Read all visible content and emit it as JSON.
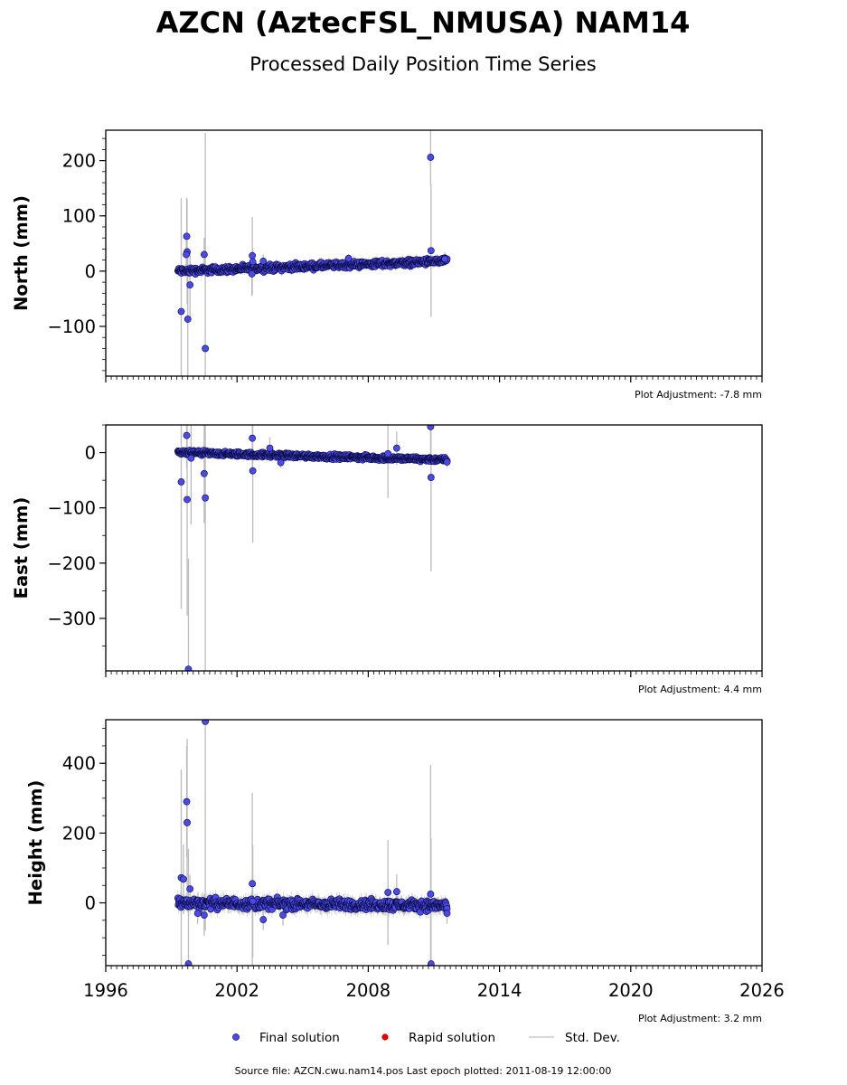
{
  "title": "AZCN (AztecFSL_NMUSA) NAM14",
  "subtitle": "Processed Daily Position Time Series",
  "source_line": "Source file: AZCN.cwu.nam14.pos  Last epoch plotted: 2011-08-19 12:00:00",
  "legend": {
    "final": "Final solution",
    "rapid": "Rapid solution",
    "std": "Std. Dev."
  },
  "colors": {
    "final": "#4a4ae6",
    "final_edge": "#0a0a40",
    "rapid": "#dd0000",
    "std": "#bbbbbb"
  },
  "chart_data": [
    {
      "type": "scatter",
      "ylabel": "North (mm)",
      "adjustment": "Plot Adjustment: -7.8 mm",
      "xlim": [
        1996,
        2026
      ],
      "ylim": [
        -190,
        255
      ],
      "yticks": [
        -100,
        0,
        100,
        200
      ],
      "ytick_labels": [
        "−100",
        "0",
        "100",
        "200"
      ],
      "minor_step": 20,
      "trend": [
        [
          1999.3,
          0
        ],
        [
          2011.6,
          18
        ]
      ],
      "noise": 4,
      "outliers": [
        [
          1999.45,
          -73,
          205
        ],
        [
          1999.7,
          63,
          70
        ],
        [
          1999.72,
          35,
          95
        ],
        [
          1999.68,
          30,
          40
        ],
        [
          1999.75,
          -87,
          130
        ],
        [
          1999.85,
          -25,
          60
        ],
        [
          2000.5,
          30,
          30
        ],
        [
          2000.55,
          -140,
          390
        ],
        [
          2002.7,
          28,
          70
        ],
        [
          2002.72,
          17,
          25
        ],
        [
          2002.68,
          -5,
          40
        ],
        [
          2003.2,
          18,
          12
        ],
        [
          2007.1,
          23,
          8
        ],
        [
          2010.85,
          206,
          50
        ],
        [
          2010.87,
          37,
          120
        ],
        [
          2011.5,
          22,
          12
        ]
      ],
      "series": [
        {
          "name": "Final solution"
        }
      ]
    },
    {
      "type": "scatter",
      "ylabel": "East (mm)",
      "adjustment": "Plot Adjustment: 4.4 mm",
      "xlim": [
        1996,
        2026
      ],
      "ylim": [
        -395,
        50
      ],
      "yticks": [
        -300,
        -200,
        -100,
        0
      ],
      "ytick_labels": [
        "−300",
        "−200",
        "−100",
        "0"
      ],
      "minor_step": 50,
      "trend": [
        [
          1999.3,
          0
        ],
        [
          2011.6,
          -13
        ]
      ],
      "noise": 3,
      "outliers": [
        [
          1999.45,
          -53,
          230
        ],
        [
          1999.7,
          31,
          60
        ],
        [
          1999.72,
          -85,
          210
        ],
        [
          1999.78,
          -392,
          200
        ],
        [
          1999.9,
          -10,
          120
        ],
        [
          2000.5,
          -38,
          90
        ],
        [
          2000.55,
          -82,
          400
        ],
        [
          2002.7,
          26,
          60
        ],
        [
          2002.72,
          -33,
          130
        ],
        [
          2003.5,
          8,
          20
        ],
        [
          2004.0,
          -18,
          10
        ],
        [
          2008.9,
          -2,
          80
        ],
        [
          2009.3,
          8,
          30
        ],
        [
          2010.85,
          47,
          60
        ],
        [
          2010.87,
          -45,
          170
        ],
        [
          2011.6,
          -17,
          10
        ]
      ],
      "series": [
        {
          "name": "Final solution"
        }
      ]
    },
    {
      "type": "scatter",
      "ylabel": "Height (mm)",
      "adjustment": "Plot Adjustment: 3.2 mm",
      "xlim": [
        1996,
        2026
      ],
      "ylim": [
        -180,
        525
      ],
      "yticks": [
        0,
        200,
        400
      ],
      "ytick_labels": [
        "0",
        "200",
        "400"
      ],
      "minor_step": 50,
      "trend": [
        [
          1999.3,
          0
        ],
        [
          2011.6,
          -8
        ]
      ],
      "noise": 10,
      "outliers": [
        [
          1999.45,
          72,
          310
        ],
        [
          1999.55,
          68,
          100
        ],
        [
          1999.7,
          290,
          160
        ],
        [
          1999.72,
          230,
          240
        ],
        [
          1999.78,
          -175,
          330
        ],
        [
          1999.85,
          40,
          40
        ],
        [
          2000.2,
          -30,
          30
        ],
        [
          2000.5,
          -35,
          60
        ],
        [
          2000.55,
          520,
          600
        ],
        [
          2002.7,
          55,
          260
        ],
        [
          2002.72,
          5,
          160
        ],
        [
          2003.2,
          -48,
          30
        ],
        [
          2004.1,
          -35,
          30
        ],
        [
          2008.9,
          30,
          150
        ],
        [
          2009.3,
          32,
          50
        ],
        [
          2010.85,
          25,
          370
        ],
        [
          2010.87,
          -175,
          360
        ],
        [
          2011.6,
          -30,
          30
        ]
      ],
      "series": [
        {
          "name": "Final solution"
        }
      ]
    }
  ],
  "xticks": [
    1996,
    2002,
    2008,
    2014,
    2020,
    2026
  ],
  "xtick_labels": [
    "1996",
    "2002",
    "2008",
    "2014",
    "2020",
    "2026"
  ],
  "xminor_step": 0.25
}
